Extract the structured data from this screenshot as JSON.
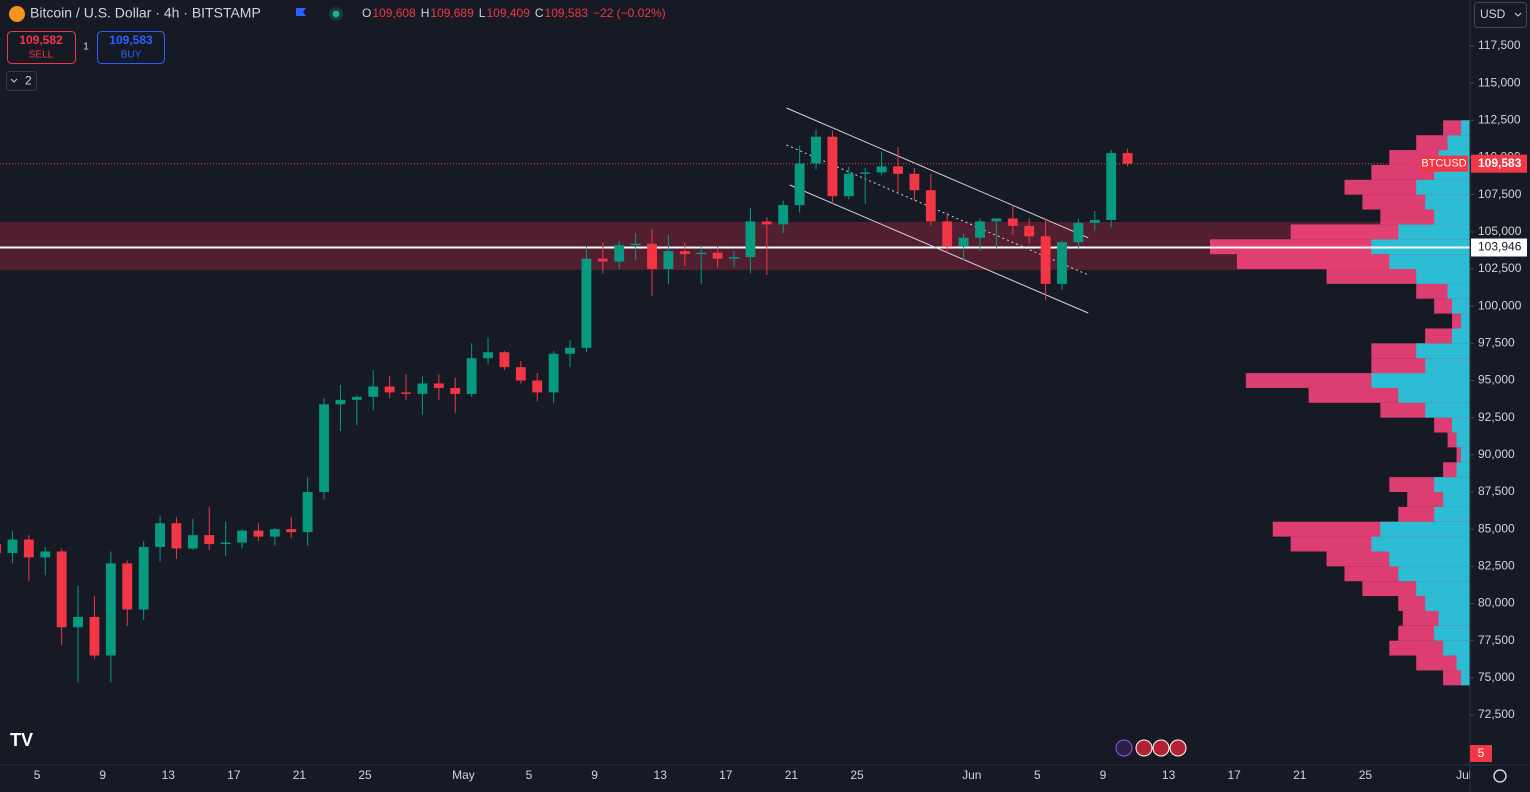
{
  "header": {
    "symbol": "Bitcoin / U.S. Dollar · 4h · BITSTAMP",
    "ohlc": [
      {
        "label": "O",
        "value": "109,608"
      },
      {
        "label": "H",
        "value": "109,689"
      },
      {
        "label": "L",
        "value": "109,409"
      },
      {
        "label": "C",
        "value": "109,583"
      }
    ],
    "change": "−22 (−0.02%)"
  },
  "trade": {
    "sell_price": "109,582",
    "sell": "SELL",
    "quantity": "1",
    "buy_price": "109,583",
    "buy": "BUY"
  },
  "indicators_toggle": "2",
  "currency": "USD",
  "events_badge": "5",
  "chart_data": {
    "type": "candlestick",
    "x": [
      1.5,
      2.5,
      3.5,
      4.5,
      5.5,
      6.5,
      7.5,
      8.5,
      9.5,
      10.5,
      11.5,
      12.5,
      13.5,
      14.5,
      15.5,
      16.5,
      17.5,
      18.5,
      19.5,
      20.5,
      21.5,
      22.5,
      23.5,
      24.5,
      25.5,
      26.5,
      27.5,
      28.5,
      29.5,
      30.5,
      31.5,
      32.5,
      33.5,
      34.5,
      35.5,
      36.5,
      37.5,
      38.5,
      39.5,
      40.5,
      41.5,
      42.5,
      43.5,
      44.5,
      45.5,
      46.5,
      47.5,
      48.5,
      49.5,
      50.5,
      51.5,
      52.5,
      53.5,
      54.5,
      55.5,
      56.5,
      57.5,
      58.5,
      59.5,
      60.5,
      61.5,
      62.5,
      63.5,
      64.5,
      65.5,
      66.5,
      67.5,
      68.5,
      69.5,
      70.5
    ],
    "open": [
      84000,
      83400,
      84300,
      83100,
      83500,
      78400,
      79100,
      76500,
      82700,
      79600,
      83800,
      85400,
      83700,
      84600,
      84000,
      84100,
      84900,
      84500,
      85000,
      84800,
      87500,
      93400,
      93700,
      93900,
      94600,
      94200,
      94100,
      94800,
      94500,
      94100,
      96500,
      96900,
      95900,
      95000,
      94200,
      96800,
      97200,
      103200,
      103000,
      104100,
      104200,
      102500,
      103700,
      103500,
      103600,
      103200,
      103300,
      105700,
      105500,
      106800,
      109600,
      111400,
      107400,
      108900,
      109000,
      109400,
      108900,
      107800,
      105700,
      104000,
      104600,
      105700,
      105900,
      105400,
      104700,
      101500,
      104300,
      105600,
      105800,
      110300
    ],
    "high": [
      84800,
      84900,
      84600,
      83800,
      83700,
      81200,
      80500,
      83500,
      82900,
      84200,
      85900,
      85800,
      85700,
      86500,
      85500,
      85000,
      85400,
      85100,
      85800,
      88500,
      93800,
      94700,
      94000,
      95700,
      95300,
      95400,
      95300,
      95400,
      95200,
      97500,
      97900,
      97000,
      96300,
      95500,
      97000,
      97700,
      104000,
      104300,
      104400,
      104900,
      105200,
      104800,
      104300,
      104100,
      104000,
      103700,
      106600,
      106000,
      107100,
      110800,
      111900,
      111800,
      109400,
      109300,
      110400,
      110700,
      109300,
      108900,
      106300,
      104900,
      105900,
      105900,
      106800,
      105900,
      105900,
      104400,
      105900,
      106400,
      110500,
      110600
    ],
    "low": [
      82300,
      82700,
      81500,
      81900,
      77200,
      74700,
      76300,
      74700,
      78500,
      78900,
      82800,
      83000,
      83600,
      83600,
      83200,
      83700,
      84200,
      83900,
      84400,
      83900,
      87000,
      91600,
      92000,
      93000,
      93800,
      93700,
      92700,
      93700,
      92800,
      93900,
      96100,
      95700,
      94800,
      93600,
      93500,
      95900,
      96900,
      102200,
      102500,
      103100,
      100700,
      101500,
      102700,
      101500,
      102600,
      102600,
      102200,
      102100,
      104900,
      106300,
      109200,
      106900,
      107200,
      106900,
      108800,
      107700,
      107100,
      105400,
      103600,
      103100,
      103700,
      103900,
      104800,
      104200,
      100400,
      101100,
      103800,
      105100,
      105300,
      109400
    ],
    "close": [
      83400,
      84300,
      83100,
      83500,
      78400,
      79100,
      76500,
      82700,
      79600,
      83800,
      85400,
      83700,
      84600,
      84000,
      84100,
      84900,
      84500,
      85000,
      84800,
      87500,
      93400,
      93700,
      93900,
      94600,
      94200,
      94100,
      94800,
      94500,
      94100,
      96500,
      96900,
      95900,
      95000,
      94200,
      96800,
      97200,
      103200,
      103000,
      104100,
      104200,
      102500,
      103700,
      103500,
      103600,
      103200,
      103300,
      105700,
      105500,
      106800,
      109600,
      111400,
      107400,
      108900,
      109000,
      109400,
      108900,
      107800,
      105700,
      104000,
      104600,
      105700,
      105900,
      105400,
      104700,
      101500,
      104300,
      105600,
      105800,
      110300,
      109583
    ],
    "up_color": "#089981",
    "down_color": "#f23645",
    "xlim": [
      1.74,
      91.38
    ],
    "xticks": [
      {
        "value": 4,
        "label": "5"
      },
      {
        "value": 8,
        "label": "9"
      },
      {
        "value": 12,
        "label": "13"
      },
      {
        "value": 16,
        "label": "17"
      },
      {
        "value": 20,
        "label": "21"
      },
      {
        "value": 24,
        "label": "25"
      },
      {
        "value": 30,
        "label": "May"
      },
      {
        "value": 34,
        "label": "5"
      },
      {
        "value": 38,
        "label": "9"
      },
      {
        "value": 42,
        "label": "13"
      },
      {
        "value": 46,
        "label": "17"
      },
      {
        "value": 50,
        "label": "21"
      },
      {
        "value": 54,
        "label": "25"
      },
      {
        "value": 61,
        "label": "Jun"
      },
      {
        "value": 65,
        "label": "5"
      },
      {
        "value": 69,
        "label": "9"
      },
      {
        "value": 73,
        "label": "13"
      },
      {
        "value": 77,
        "label": "17"
      },
      {
        "value": 81,
        "label": "21"
      },
      {
        "value": 85,
        "label": "25"
      },
      {
        "value": 91,
        "label": "Jul"
      }
    ],
    "ylim": [
      69137,
      120594
    ],
    "yticks": [
      {
        "value": 117500,
        "label": "117,500"
      },
      {
        "value": 115000,
        "label": "115,000"
      },
      {
        "value": 112500,
        "label": "112,500"
      },
      {
        "value": 110000,
        "label": "110,000"
      },
      {
        "value": 107500,
        "label": "107,500"
      },
      {
        "value": 105000,
        "label": "105,000"
      },
      {
        "value": 102500,
        "label": "102,500"
      },
      {
        "value": 100000,
        "label": "100,000"
      },
      {
        "value": 97500,
        "label": "97,500"
      },
      {
        "value": 95000,
        "label": "95,000"
      },
      {
        "value": 92500,
        "label": "92,500"
      },
      {
        "value": 90000,
        "label": "90,000"
      },
      {
        "value": 87500,
        "label": "87,500"
      },
      {
        "value": 85000,
        "label": "85,000"
      },
      {
        "value": 82500,
        "label": "82,500"
      },
      {
        "value": 80000,
        "label": "80,000"
      },
      {
        "value": 77500,
        "label": "77,500"
      },
      {
        "value": 75000,
        "label": "75,000"
      },
      {
        "value": 72500,
        "label": "72,500"
      }
    ],
    "last_price": {
      "symbol": "BTCUSD",
      "value": 109583,
      "label": "109,583"
    },
    "horizontal_line": {
      "value": 103946,
      "label": "103,946"
    },
    "zone": [
      102430,
      105660
    ],
    "trendlines": [
      {
        "x": [
          49.7,
          68.1
        ],
        "y": [
          113330,
          104600
        ],
        "style": "solid"
      },
      {
        "x": [
          49.7,
          68.1
        ],
        "y": [
          110840,
          102100
        ],
        "style": "dotted"
      },
      {
        "x": [
          49.9,
          68.1
        ],
        "y": [
          108150,
          99540
        ],
        "style": "solid"
      }
    ],
    "volume_profile": {
      "up_color": "#22c3d8",
      "down_color": "#f2437a",
      "prices": [
        75000,
        76000,
        77000,
        78000,
        79000,
        80000,
        81000,
        82000,
        83000,
        84000,
        85000,
        86000,
        87000,
        88000,
        89000,
        90000,
        91000,
        92000,
        93000,
        94000,
        95000,
        96000,
        97000,
        98000,
        99000,
        100000,
        101000,
        102000,
        103000,
        104000,
        105000,
        106000,
        107000,
        108000,
        109000,
        110000,
        111000,
        112000
      ],
      "total": [
        30,
        60,
        90,
        80,
        75,
        80,
        120,
        140,
        160,
        200,
        220,
        80,
        70,
        90,
        30,
        15,
        25,
        40,
        100,
        180,
        250,
        110,
        110,
        50,
        20,
        40,
        60,
        160,
        260,
        290,
        200,
        100,
        120,
        140,
        110,
        90,
        60,
        30
      ],
      "up": [
        10,
        15,
        30,
        40,
        35,
        50,
        60,
        80,
        90,
        110,
        100,
        40,
        30,
        40,
        15,
        10,
        15,
        20,
        50,
        80,
        110,
        50,
        60,
        20,
        10,
        20,
        25,
        60,
        90,
        110,
        80,
        40,
        50,
        60,
        40,
        35,
        25,
        10
      ]
    }
  }
}
